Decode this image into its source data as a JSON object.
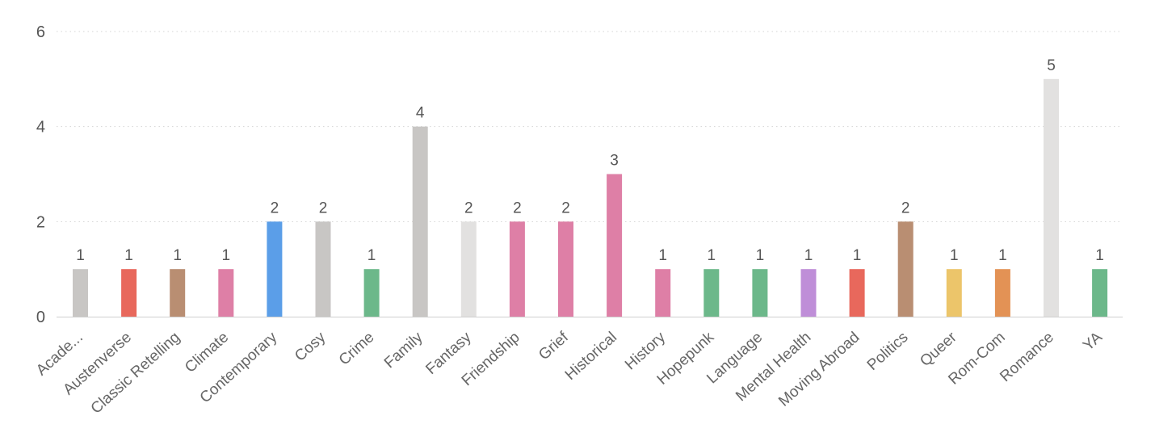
{
  "chart_data": {
    "type": "bar",
    "categories": [
      "Acade...",
      "Austenverse",
      "Classic Retelling",
      "Climate",
      "Contemporary",
      "Cosy",
      "Crime",
      "Family",
      "Fantasy",
      "Friendship",
      "Grief",
      "Historical",
      "History",
      "Hopepunk",
      "Language",
      "Mental Health",
      "Moving Abroad",
      "Politics",
      "Queer",
      "Rom-Com",
      "Romance",
      "YA"
    ],
    "values": [
      1,
      1,
      1,
      1,
      2,
      2,
      1,
      4,
      2,
      2,
      2,
      3,
      1,
      1,
      1,
      1,
      1,
      2,
      1,
      1,
      5,
      1
    ],
    "colors": [
      "#c8c6c4",
      "#e8685c",
      "#b98e72",
      "#de7fa6",
      "#5b9ee8",
      "#c8c6c4",
      "#6cb88a",
      "#c8c6c4",
      "#e2e1e0",
      "#de7fa6",
      "#de7fa6",
      "#de7fa6",
      "#de7fa6",
      "#6cb88a",
      "#6cb88a",
      "#bf8ed8",
      "#e8685c",
      "#b98e72",
      "#ecc56a",
      "#e39255",
      "#e2e1e0",
      "#6cb88a"
    ],
    "yticks": [
      0,
      2,
      4,
      6
    ],
    "ylim": [
      0,
      6
    ],
    "grid": true,
    "legend": "none",
    "data_labels": true
  }
}
